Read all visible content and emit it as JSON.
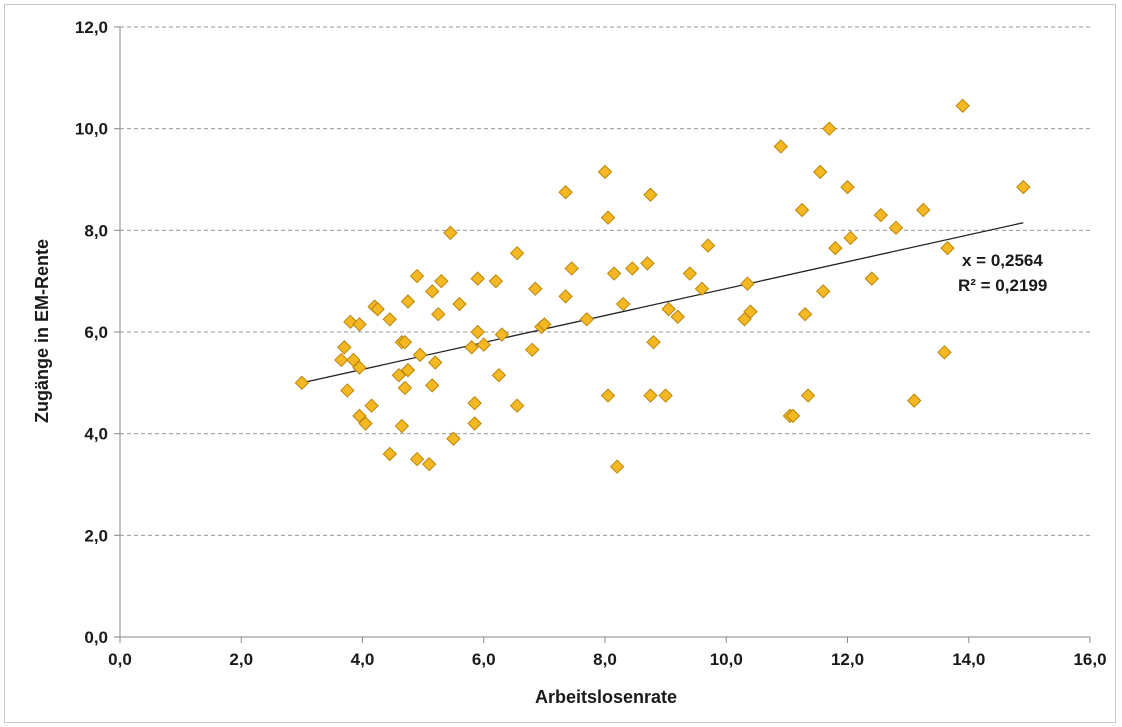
{
  "chart_data": {
    "type": "scatter",
    "title": "",
    "xlabel": "Arbeitslosenrate",
    "ylabel": "Zugänge in EM-Rente",
    "xlim": [
      0,
      16
    ],
    "ylim": [
      0,
      12
    ],
    "x_ticks": [
      "0,0",
      "2,0",
      "4,0",
      "6,0",
      "8,0",
      "10,0",
      "12,0",
      "14,0",
      "16,0"
    ],
    "y_ticks": [
      "0,0",
      "2,0",
      "4,0",
      "6,0",
      "8,0",
      "10,0",
      "12,0"
    ],
    "grid": "horizontal dashed",
    "marker_color": "#f5b822",
    "marker_edge_color": "#b8860b",
    "marker": "diamond",
    "trendline": {
      "x": [
        3.0,
        14.9
      ],
      "y": [
        5.0,
        8.15
      ],
      "color": "#222222"
    },
    "annotations": [
      "x = 0,2564",
      "R² = 0,2199"
    ],
    "points": [
      [
        3.0,
        5.0
      ],
      [
        3.65,
        5.45
      ],
      [
        3.7,
        5.7
      ],
      [
        3.75,
        4.85
      ],
      [
        3.8,
        6.2
      ],
      [
        3.85,
        5.45
      ],
      [
        3.95,
        5.3
      ],
      [
        3.95,
        6.15
      ],
      [
        3.95,
        4.35
      ],
      [
        4.05,
        4.2
      ],
      [
        4.15,
        4.55
      ],
      [
        4.2,
        6.5
      ],
      [
        4.25,
        6.45
      ],
      [
        4.45,
        6.25
      ],
      [
        4.45,
        3.6
      ],
      [
        4.6,
        5.15
      ],
      [
        4.65,
        5.8
      ],
      [
        4.65,
        4.15
      ],
      [
        4.7,
        5.8
      ],
      [
        4.7,
        4.9
      ],
      [
        4.75,
        5.25
      ],
      [
        4.75,
        6.6
      ],
      [
        4.9,
        7.1
      ],
      [
        4.9,
        3.5
      ],
      [
        4.95,
        5.55
      ],
      [
        5.1,
        3.4
      ],
      [
        5.15,
        6.8
      ],
      [
        5.15,
        4.95
      ],
      [
        5.2,
        5.4
      ],
      [
        5.25,
        6.35
      ],
      [
        5.3,
        7.0
      ],
      [
        5.45,
        7.95
      ],
      [
        5.5,
        3.9
      ],
      [
        5.6,
        6.55
      ],
      [
        5.8,
        5.7
      ],
      [
        5.85,
        4.6
      ],
      [
        5.85,
        4.2
      ],
      [
        5.9,
        7.05
      ],
      [
        5.9,
        6.0
      ],
      [
        6.0,
        5.75
      ],
      [
        6.2,
        7.0
      ],
      [
        6.25,
        5.15
      ],
      [
        6.3,
        5.95
      ],
      [
        6.55,
        7.55
      ],
      [
        6.55,
        4.55
      ],
      [
        6.8,
        5.65
      ],
      [
        6.85,
        6.85
      ],
      [
        6.95,
        6.1
      ],
      [
        7.0,
        6.15
      ],
      [
        7.35,
        8.75
      ],
      [
        7.35,
        6.7
      ],
      [
        7.45,
        7.25
      ],
      [
        7.7,
        6.25
      ],
      [
        8.0,
        9.15
      ],
      [
        8.05,
        8.25
      ],
      [
        8.05,
        4.75
      ],
      [
        8.15,
        7.15
      ],
      [
        8.2,
        3.35
      ],
      [
        8.3,
        6.55
      ],
      [
        8.45,
        7.25
      ],
      [
        8.7,
        7.35
      ],
      [
        8.75,
        8.7
      ],
      [
        8.75,
        4.75
      ],
      [
        8.8,
        5.8
      ],
      [
        9.0,
        4.75
      ],
      [
        9.05,
        6.45
      ],
      [
        9.2,
        6.3
      ],
      [
        9.4,
        7.15
      ],
      [
        9.6,
        6.85
      ],
      [
        9.7,
        7.7
      ],
      [
        10.3,
        6.25
      ],
      [
        10.35,
        6.95
      ],
      [
        10.4,
        6.4
      ],
      [
        10.9,
        9.65
      ],
      [
        11.05,
        4.35
      ],
      [
        11.1,
        4.35
      ],
      [
        11.25,
        8.4
      ],
      [
        11.3,
        6.35
      ],
      [
        11.35,
        4.75
      ],
      [
        11.55,
        9.15
      ],
      [
        11.6,
        6.8
      ],
      [
        11.7,
        10.0
      ],
      [
        11.8,
        7.65
      ],
      [
        12.0,
        8.85
      ],
      [
        12.05,
        7.85
      ],
      [
        12.4,
        7.05
      ],
      [
        12.55,
        8.3
      ],
      [
        12.8,
        8.05
      ],
      [
        13.1,
        4.65
      ],
      [
        13.25,
        8.4
      ],
      [
        13.6,
        5.6
      ],
      [
        13.65,
        7.65
      ],
      [
        13.9,
        10.45
      ],
      [
        14.9,
        8.85
      ]
    ]
  }
}
